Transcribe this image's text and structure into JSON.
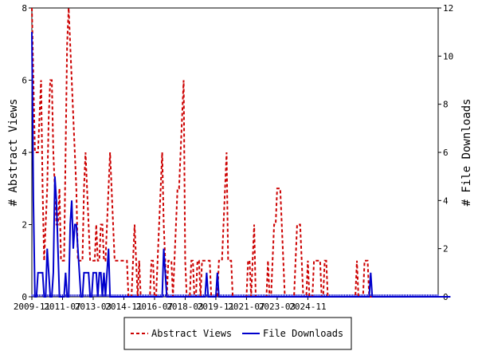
{
  "chart_data": {
    "type": "line",
    "title": "",
    "ylabel": "# Abstract Views",
    "y2label": "# File Downloads",
    "ylim": [
      0,
      8
    ],
    "y2lim": [
      0,
      12
    ],
    "yticks": [
      0,
      2,
      4,
      6,
      8
    ],
    "y2ticks": [
      0,
      2,
      4,
      6,
      8,
      10,
      12
    ],
    "xticks": [
      "2009-11",
      "2011-07",
      "2013-03",
      "2014-11",
      "2016-07",
      "2018-03",
      "2019-11",
      "2021-07",
      "2023-03",
      "2024-11"
    ],
    "legend_position": "bottom",
    "grid": false,
    "series": [
      {
        "name": "Abstract Views",
        "axis": "left",
        "color": "#cc0000",
        "style": "dashed",
        "values": [
          8,
          6,
          4,
          4,
          4,
          5,
          6,
          3,
          1,
          2,
          3,
          5,
          6,
          6,
          4,
          3,
          2,
          2,
          3,
          1,
          1,
          1,
          4,
          7,
          8,
          7,
          6,
          5,
          4,
          3,
          1,
          1,
          1,
          1,
          3,
          4,
          3,
          2,
          1,
          1,
          1,
          1,
          2,
          1,
          1,
          2,
          2,
          1,
          1,
          2,
          3,
          4,
          3,
          2,
          1,
          1,
          1,
          1,
          1,
          1,
          1,
          1,
          1,
          0,
          0,
          0,
          1,
          2,
          1,
          0,
          1,
          0,
          0,
          0,
          0,
          0,
          0,
          0,
          1,
          1,
          0,
          0,
          1,
          2,
          3,
          4,
          2,
          1,
          0,
          1,
          1,
          1,
          0,
          1,
          2,
          3,
          3,
          4,
          5,
          6,
          1,
          0,
          0,
          0,
          1,
          1,
          0,
          0,
          1,
          1,
          0,
          1,
          1,
          1,
          1,
          1,
          1,
          0,
          0,
          0,
          0,
          0,
          1,
          1,
          1,
          2,
          3,
          4,
          1,
          1,
          1,
          0,
          0,
          0,
          0,
          0,
          0,
          0,
          0,
          0,
          0,
          1,
          1,
          0,
          1,
          2,
          0,
          0,
          0,
          0,
          0,
          0,
          0,
          0,
          1,
          0,
          0,
          1,
          2,
          2,
          3,
          3,
          3,
          2,
          1,
          0,
          0,
          0,
          0,
          0,
          0,
          0,
          1,
          2,
          2,
          2,
          1,
          0,
          0,
          0,
          1,
          0,
          0,
          0,
          1,
          1,
          1,
          1,
          1,
          0,
          0,
          1,
          1,
          0,
          0,
          0,
          0,
          0,
          0,
          0,
          0,
          0,
          0,
          0,
          0,
          0,
          0,
          0,
          0,
          0,
          0,
          0,
          1,
          0,
          0,
          0,
          0,
          1,
          1,
          1,
          0,
          0,
          0,
          0,
          0,
          0,
          0,
          0,
          0,
          0,
          0,
          0,
          0,
          0,
          0,
          0,
          0,
          0,
          0,
          0,
          0,
          0,
          0,
          0,
          0,
          0,
          0,
          0,
          0,
          0,
          0,
          0,
          0,
          0,
          0,
          0,
          0,
          0,
          0,
          0,
          0,
          0,
          0,
          0,
          0,
          0
        ]
      },
      {
        "name": "File Downloads",
        "axis": "right",
        "color": "#0000cc",
        "style": "solid",
        "values": [
          11,
          4,
          0,
          0,
          1,
          1,
          1,
          1,
          0,
          0,
          2,
          1,
          0,
          0,
          1,
          5,
          4,
          2,
          0,
          0,
          0,
          0,
          1,
          0,
          0,
          3,
          4,
          2,
          3,
          3,
          2,
          1,
          0,
          0,
          1,
          1,
          1,
          1,
          0,
          0,
          1,
          1,
          1,
          0,
          1,
          1,
          0,
          1,
          0,
          1,
          2,
          0,
          0,
          0,
          0,
          0,
          0,
          0,
          0,
          0,
          0,
          0,
          0,
          0,
          0,
          0,
          0,
          0,
          0,
          0,
          0,
          0,
          0,
          0,
          0,
          0,
          0,
          0,
          0,
          0,
          0,
          0,
          0,
          0,
          0,
          0,
          2,
          1,
          0,
          0,
          0,
          0,
          0,
          0,
          0,
          0,
          0,
          0,
          0,
          0,
          0,
          0,
          0,
          0,
          0,
          0,
          0,
          0,
          0,
          0,
          0,
          0,
          0,
          0,
          1,
          0,
          0,
          0,
          0,
          0,
          0,
          1,
          0,
          0,
          0,
          0,
          0,
          0,
          0,
          0,
          0,
          0,
          0,
          0,
          0,
          0,
          0,
          0,
          0,
          0,
          0,
          0,
          0,
          0,
          0,
          0,
          0,
          0,
          0,
          0,
          0,
          0,
          0,
          0,
          0,
          0,
          0,
          0,
          0,
          0,
          0,
          0,
          0,
          0,
          0,
          0,
          0,
          0,
          0,
          0,
          0,
          0,
          0,
          0,
          0,
          0,
          0,
          0,
          0,
          0,
          0,
          0,
          0,
          0,
          0,
          0,
          0,
          0,
          0,
          0,
          0,
          0,
          0,
          0,
          0,
          0,
          0,
          0,
          0,
          0,
          0,
          0,
          0,
          0,
          0,
          0,
          0,
          0,
          0,
          0,
          0,
          0,
          0,
          0,
          0,
          0,
          0,
          0,
          0,
          0,
          0,
          1,
          0,
          0,
          0,
          0,
          0,
          0,
          0,
          0,
          0,
          0,
          0,
          0,
          0,
          0,
          0,
          0,
          0,
          0,
          0,
          0,
          0,
          0,
          0,
          0,
          0,
          0,
          0,
          0,
          0,
          0,
          0,
          0,
          0,
          0,
          0,
          0,
          0,
          0,
          0,
          0,
          0,
          0,
          0,
          0,
          0,
          0,
          0,
          0,
          0,
          0,
          0,
          0
        ]
      }
    ]
  }
}
